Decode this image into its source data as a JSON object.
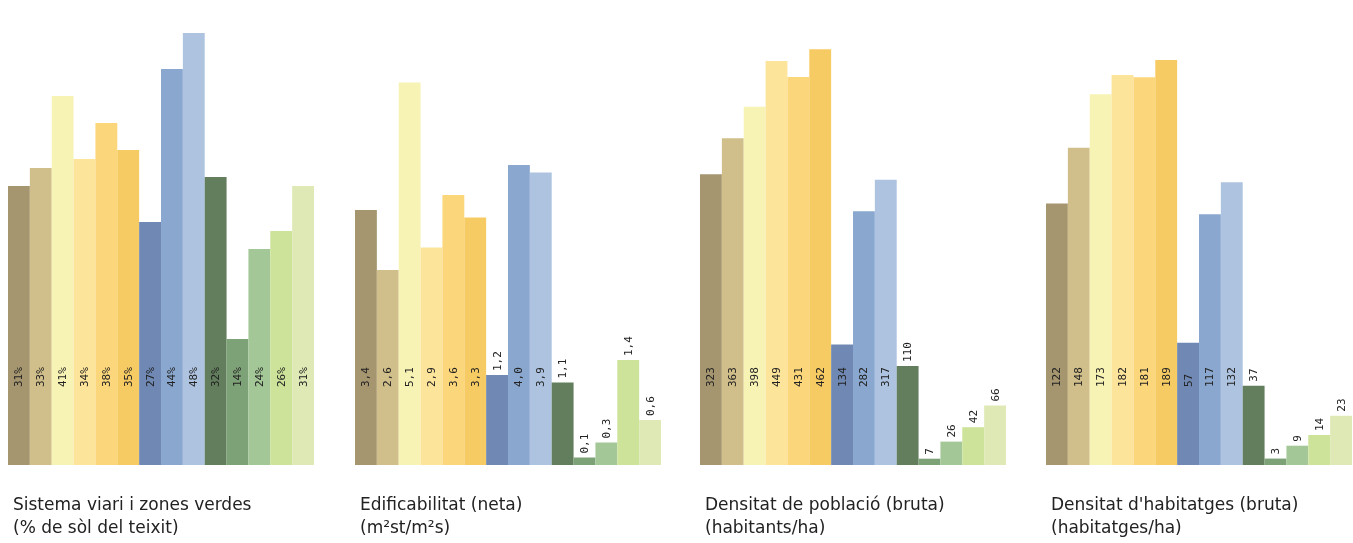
{
  "chart_data": [
    {
      "type": "bar",
      "title": "Sistema viari i zones verdes",
      "subtitle": "(% de sòl del teixit)",
      "categories": [
        null,
        null,
        null,
        null,
        null,
        null,
        null,
        null,
        null,
        null,
        null,
        null,
        null,
        null
      ],
      "values": [
        31,
        33,
        41,
        34,
        38,
        35,
        27,
        44,
        48,
        32,
        14,
        24,
        26,
        31
      ],
      "value_labels": [
        "31%",
        "33%",
        "41%",
        "34%",
        "38%",
        "35%",
        "27%",
        "44%",
        "48%",
        "32%",
        "14%",
        "24%",
        "26%",
        "31%"
      ],
      "colors": [
        "#a59670",
        "#d0bf8a",
        "#f7f3b5",
        "#fde49b",
        "#fbd67a",
        "#f7cb63",
        "#7089b4",
        "#8aa8cf",
        "#adc3e0",
        "#627e5c",
        "#7ea277",
        "#a3c796",
        "#cde39a",
        "#dfe9b6"
      ]
    },
    {
      "type": "bar",
      "title": "Edificabilitat (neta)",
      "subtitle": "(m²st/m²s)",
      "categories": [
        null,
        null,
        null,
        null,
        null,
        null,
        null,
        null,
        null,
        null,
        null,
        null,
        null,
        null
      ],
      "values": [
        3.4,
        2.6,
        5.1,
        2.9,
        3.6,
        3.3,
        1.2,
        4.0,
        3.9,
        1.1,
        0.1,
        0.3,
        1.4,
        0.6
      ],
      "value_labels": [
        "3,4",
        "2,6",
        "5,1",
        "2,9",
        "3,6",
        "3,3",
        "1,2",
        "4,0",
        "3,9",
        "1,1",
        "0,1",
        "0,3",
        "1,4",
        "0,6"
      ],
      "colors": [
        "#a59670",
        "#d0bf8a",
        "#f7f3b5",
        "#fde49b",
        "#fbd67a",
        "#f7cb63",
        "#7089b4",
        "#8aa8cf",
        "#adc3e0",
        "#627e5c",
        "#7ea277",
        "#a3c796",
        "#cde39a",
        "#dfe9b6"
      ]
    },
    {
      "type": "bar",
      "title": "Densitat de població (bruta)",
      "subtitle": "(habitants/ha)",
      "categories": [
        null,
        null,
        null,
        null,
        null,
        null,
        null,
        null,
        null,
        null,
        null,
        null,
        null,
        null
      ],
      "values": [
        323,
        363,
        398,
        449,
        431,
        462,
        134,
        282,
        317,
        110,
        7,
        26,
        42,
        66
      ],
      "value_labels": [
        "323",
        "363",
        "398",
        "449",
        "431",
        "462",
        "134",
        "282",
        "317",
        "110",
        "7",
        "26",
        "42",
        "66"
      ],
      "colors": [
        "#a59670",
        "#d0bf8a",
        "#f7f3b5",
        "#fde49b",
        "#fbd67a",
        "#f7cb63",
        "#7089b4",
        "#8aa8cf",
        "#adc3e0",
        "#627e5c",
        "#7ea277",
        "#a3c796",
        "#cde39a",
        "#dfe9b6"
      ]
    },
    {
      "type": "bar",
      "title": "Densitat d'habitatges (bruta)",
      "subtitle": "(habitatges/ha)",
      "categories": [
        null,
        null,
        null,
        null,
        null,
        null,
        null,
        null,
        null,
        null,
        null,
        null,
        null,
        null
      ],
      "values": [
        122,
        148,
        173,
        182,
        181,
        189,
        57,
        117,
        132,
        37,
        3,
        9,
        14,
        23
      ],
      "value_labels": [
        "122",
        "148",
        "173",
        "182",
        "181",
        "189",
        "57",
        "117",
        "132",
        "37",
        "3",
        "9",
        "14",
        "23"
      ],
      "colors": [
        "#a59670",
        "#d0bf8a",
        "#f7f3b5",
        "#fde49b",
        "#fbd67a",
        "#f7cb63",
        "#7089b4",
        "#8aa8cf",
        "#adc3e0",
        "#627e5c",
        "#7ea277",
        "#a3c796",
        "#cde39a",
        "#dfe9b6"
      ]
    }
  ]
}
